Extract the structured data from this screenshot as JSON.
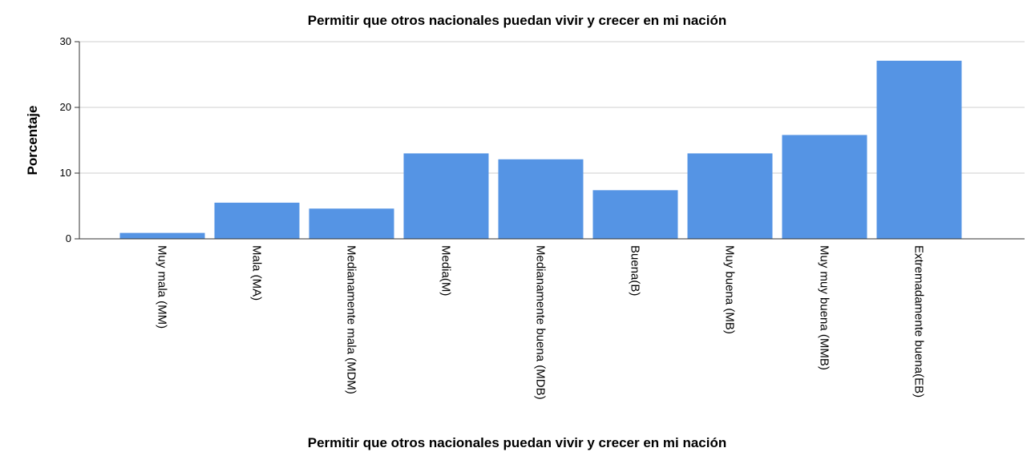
{
  "chart_data": {
    "type": "bar",
    "title": "Permitir que otros nacionales puedan vivir y crecer en mi nación",
    "xlabel": "Permitir que otros nacionales puedan vivir y crecer en mi nación",
    "ylabel": "Porcentaje",
    "categories": [
      "Muy mala (MM)",
      "Mala (MA)",
      "Medianamente mala (MDM)",
      "Media(M)",
      "Medianamente buena (MDB)",
      "Buena(B)",
      "Muy buena (MB)",
      "Muy muy buena (MMB)",
      "Extremadamente buena(EB)"
    ],
    "values": [
      0.9,
      5.5,
      4.6,
      13.0,
      12.1,
      7.4,
      13.0,
      15.8,
      27.1
    ],
    "ylim": [
      0,
      30
    ],
    "yticks": [
      "0",
      "10",
      "20",
      "30"
    ],
    "grid": true,
    "bar_color": "#5594e4"
  }
}
